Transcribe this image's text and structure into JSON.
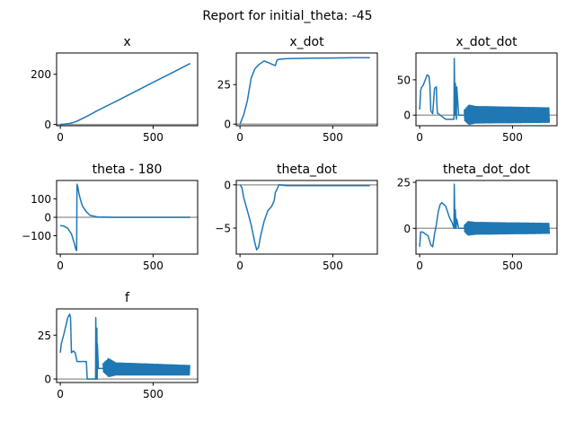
{
  "figure": {
    "suptitle": "Report for initial_theta: -45"
  },
  "colors": {
    "line": "#1f77b4",
    "baseline": "#a0a0a0",
    "axes": "#000000"
  },
  "chart_data": [
    {
      "type": "line",
      "title": "x",
      "xlim": [
        -20,
        740
      ],
      "ylim": [
        -5,
        285
      ],
      "xticks": [
        0,
        500
      ],
      "xtick_labels": [
        "0",
        "500"
      ],
      "yticks": [
        0,
        200
      ],
      "ytick_labels": [
        "0",
        "200"
      ],
      "baseline": 0,
      "series": [
        {
          "mode": "line",
          "x": [
            0,
            20,
            50,
            80,
            100,
            150,
            200,
            300,
            400,
            500,
            600,
            700
          ],
          "y": [
            0,
            1,
            4,
            10,
            17,
            35,
            55,
            92,
            130,
            168,
            205,
            243
          ]
        }
      ]
    },
    {
      "type": "line",
      "title": "x_dot",
      "xlim": [
        -20,
        740
      ],
      "ylim": [
        -1,
        45
      ],
      "xticks": [
        0,
        500
      ],
      "xtick_labels": [
        "0",
        "500"
      ],
      "yticks": [
        0,
        25
      ],
      "ytick_labels": [
        "0",
        "25"
      ],
      "baseline": 0,
      "series": [
        {
          "mode": "line",
          "x": [
            0,
            20,
            40,
            60,
            80,
            100,
            130,
            160,
            190,
            200,
            210,
            260,
            400,
            500,
            600,
            700
          ],
          "y": [
            0,
            6,
            15,
            29,
            35,
            37.5,
            40,
            38.5,
            37,
            40.5,
            41,
            41.5,
            41.7,
            41.8,
            42,
            42
          ]
        }
      ]
    },
    {
      "type": "line",
      "title": "x_dot_dot",
      "xlim": [
        -20,
        740
      ],
      "ylim": [
        -15,
        88
      ],
      "xticks": [
        0,
        500
      ],
      "xtick_labels": [
        "0",
        "500"
      ],
      "yticks": [
        0,
        50
      ],
      "ytick_labels": [
        "0",
        "50"
      ],
      "baseline": 0,
      "series": [
        {
          "mode": "line",
          "x": [
            0,
            5,
            10,
            20,
            40,
            50,
            55,
            60,
            70,
            80,
            90,
            92,
            95,
            130,
            140,
            150,
            160,
            170,
            185,
            186,
            190,
            192,
            196,
            198,
            200,
            210,
            240
          ],
          "y": [
            8,
            35,
            39,
            43,
            57,
            55,
            42,
            6,
            2,
            38,
            40,
            20,
            3,
            -4,
            -6,
            -6,
            -6,
            -6,
            -6,
            80,
            0,
            45,
            2,
            -6,
            40,
            0,
            0
          ]
        },
        {
          "mode": "band",
          "x0": 240,
          "x1": 700,
          "upper": [
            [
              240,
              8
            ],
            [
              265,
              15
            ],
            [
              300,
              13
            ],
            [
              700,
              11
            ]
          ],
          "lower": [
            [
              240,
              -8
            ],
            [
              265,
              -14
            ],
            [
              300,
              -12
            ],
            [
              700,
              -11
            ]
          ]
        }
      ]
    },
    {
      "type": "line",
      "title": "theta - 180",
      "xlim": [
        -20,
        740
      ],
      "ylim": [
        -200,
        200
      ],
      "xticks": [
        0,
        500
      ],
      "xtick_labels": [
        "0",
        "500"
      ],
      "yticks": [
        -100,
        0,
        100
      ],
      "ytick_labels": [
        "−100",
        "0",
        "100"
      ],
      "baseline": 0,
      "series": [
        {
          "mode": "line",
          "x": [
            0,
            20,
            40,
            60,
            75,
            85,
            88,
            90,
            95,
            100,
            110,
            120,
            140,
            160,
            200,
            300,
            700
          ],
          "y": [
            -45,
            -48,
            -60,
            -90,
            -140,
            -178,
            -180,
            180,
            160,
            130,
            90,
            60,
            30,
            10,
            2,
            0,
            0
          ]
        }
      ]
    },
    {
      "type": "line",
      "title": "theta_dot",
      "xlim": [
        -20,
        740
      ],
      "ylim": [
        -8,
        0.5
      ],
      "xticks": [
        0,
        500
      ],
      "xtick_labels": [
        "0",
        "500"
      ],
      "yticks": [
        -5,
        0
      ],
      "ytick_labels": [
        "−5",
        "0"
      ],
      "baseline": 0,
      "series": [
        {
          "mode": "line",
          "x": [
            0,
            10,
            20,
            40,
            60,
            80,
            90,
            100,
            110,
            130,
            150,
            170,
            185,
            190,
            200,
            210,
            250,
            300,
            700
          ],
          "y": [
            0,
            -0.3,
            -1.5,
            -3,
            -4.6,
            -6.7,
            -7.5,
            -7.2,
            -6,
            -4.2,
            -3,
            -2.5,
            -1.8,
            -0.9,
            -0.5,
            0,
            -0.1,
            -0.1,
            -0.1
          ]
        }
      ]
    },
    {
      "type": "line",
      "title": "theta_dot_dot",
      "xlim": [
        -20,
        740
      ],
      "ylim": [
        -14,
        26
      ],
      "xticks": [
        0,
        500
      ],
      "xtick_labels": [
        "0",
        "500"
      ],
      "yticks": [
        0,
        25
      ],
      "ytick_labels": [
        "0",
        "25"
      ],
      "baseline": 0,
      "series": [
        {
          "mode": "line",
          "x": [
            0,
            5,
            15,
            30,
            45,
            60,
            70,
            80,
            90,
            100,
            110,
            120,
            140,
            160,
            175,
            185,
            186,
            190,
            192,
            196,
            198,
            200,
            210,
            240
          ],
          "y": [
            -10,
            -2,
            -2,
            -3,
            -4,
            -9,
            -10,
            -3,
            2,
            9,
            13,
            14,
            12,
            6,
            3,
            0,
            24,
            0,
            10,
            0,
            2,
            5,
            0,
            0
          ]
        },
        {
          "mode": "band",
          "x0": 240,
          "x1": 700,
          "upper": [
            [
              240,
              2
            ],
            [
              260,
              4
            ],
            [
              300,
              3.5
            ],
            [
              700,
              3
            ]
          ],
          "lower": [
            [
              240,
              -2
            ],
            [
              260,
              -4
            ],
            [
              300,
              -3.5
            ],
            [
              700,
              -3
            ]
          ]
        }
      ]
    },
    {
      "type": "line",
      "title": "f",
      "xlim": [
        -20,
        740
      ],
      "ylim": [
        -2,
        40
      ],
      "xticks": [
        0,
        500
      ],
      "xtick_labels": [
        "0",
        "500"
      ],
      "yticks": [
        0,
        25
      ],
      "ytick_labels": [
        "0",
        "25"
      ],
      "baseline": 0,
      "series": [
        {
          "mode": "line",
          "x": [
            0,
            5,
            20,
            40,
            50,
            55,
            60,
            70,
            80,
            90,
            95,
            130,
            140,
            145,
            190,
            191,
            195,
            197,
            199,
            200,
            205,
            230
          ],
          "y": [
            15,
            20,
            26,
            35,
            37,
            35,
            15,
            16,
            15,
            10,
            10,
            10,
            10,
            0,
            0,
            35,
            0,
            29,
            0,
            20,
            6,
            6
          ]
        },
        {
          "mode": "band",
          "x0": 230,
          "x1": 700,
          "upper": [
            [
              230,
              9
            ],
            [
              260,
              12
            ],
            [
              300,
              9.5
            ],
            [
              700,
              8
            ]
          ],
          "lower": [
            [
              230,
              4
            ],
            [
              260,
              1
            ],
            [
              300,
              2
            ],
            [
              700,
              2
            ]
          ]
        }
      ]
    }
  ]
}
